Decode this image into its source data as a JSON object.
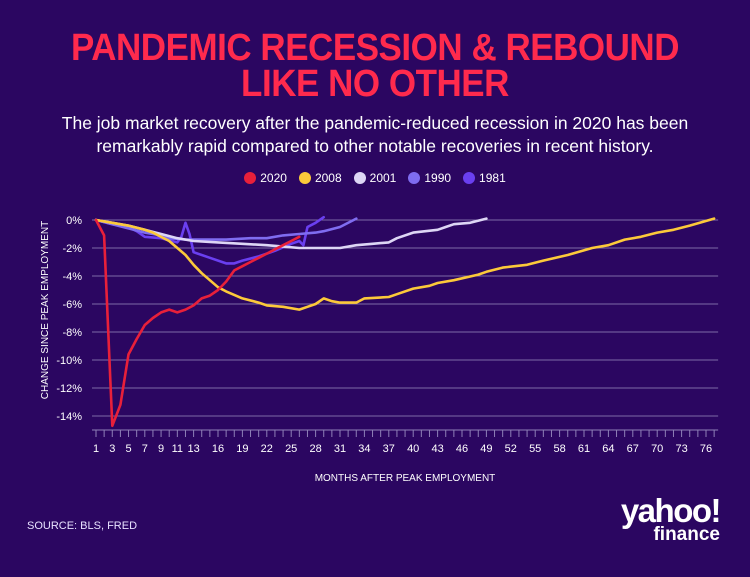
{
  "header": {
    "title_line1": "PANDEMIC RECESSION & REBOUND",
    "title_line2": "LIKE NO OTHER",
    "subtitle": "The job market recovery after the pandemic-reduced recession in 2020 has been remarkably rapid compared to other notable recoveries in recent history."
  },
  "footer": {
    "source": "SOURCE: BLS, FRED",
    "logo_main": "yahoo!",
    "logo_sub": "finance"
  },
  "chart_data": {
    "type": "line",
    "title": "PANDEMIC RECESSION & REBOUND LIKE NO OTHER",
    "xlabel": "MONTHS AFTER PEAK EMPLOYMENT",
    "ylabel": "CHANGE SINCE PEAK EMPLOYMENT",
    "xlim": [
      1,
      77
    ],
    "ylim": [
      -15,
      0.5
    ],
    "grid": true,
    "legend_position": "top-center",
    "x_ticks": [
      1,
      3,
      5,
      7,
      9,
      11,
      13,
      16,
      19,
      22,
      25,
      28,
      31,
      34,
      37,
      40,
      43,
      46,
      49,
      52,
      55,
      58,
      61,
      64,
      67,
      70,
      73,
      76
    ],
    "y_ticks": [
      0,
      -2,
      -4,
      -6,
      -8,
      -10,
      -12,
      -14
    ],
    "y_tick_labels": [
      "0%",
      "-2%",
      "-4%",
      "-6%",
      "-8%",
      "-10%",
      "-12%",
      "-14%"
    ],
    "series": [
      {
        "name": "2020",
        "color": "#e8203a",
        "points": [
          [
            1,
            0
          ],
          [
            2,
            -1.1
          ],
          [
            3,
            -14.7
          ],
          [
            4,
            -13.2
          ],
          [
            5,
            -9.6
          ],
          [
            6,
            -8.5
          ],
          [
            7,
            -7.5
          ],
          [
            8,
            -7
          ],
          [
            9,
            -6.6
          ],
          [
            10,
            -6.4
          ],
          [
            11,
            -6.6
          ],
          [
            12,
            -6.4
          ],
          [
            13,
            -6.1
          ],
          [
            14,
            -5.6
          ],
          [
            15,
            -5.4
          ],
          [
            16,
            -5.0
          ],
          [
            17,
            -4.4
          ],
          [
            18,
            -3.6
          ],
          [
            19,
            -3.3
          ],
          [
            20,
            -3.0
          ],
          [
            21,
            -2.7
          ],
          [
            22,
            -2.4
          ],
          [
            23,
            -2.1
          ],
          [
            24,
            -1.8
          ],
          [
            25,
            -1.5
          ],
          [
            26,
            -1.2
          ]
        ]
      },
      {
        "name": "2008",
        "color": "#fcc93a",
        "points": [
          [
            1,
            0
          ],
          [
            3,
            -0.2
          ],
          [
            5,
            -0.4
          ],
          [
            7,
            -0.7
          ],
          [
            8,
            -0.9
          ],
          [
            10,
            -1.5
          ],
          [
            12,
            -2.5
          ],
          [
            13,
            -3.2
          ],
          [
            14,
            -3.8
          ],
          [
            16,
            -4.8
          ],
          [
            17,
            -5.1
          ],
          [
            19,
            -5.6
          ],
          [
            21,
            -5.9
          ],
          [
            22,
            -6.1
          ],
          [
            24,
            -6.2
          ],
          [
            26,
            -6.4
          ],
          [
            27,
            -6.2
          ],
          [
            28,
            -6.0
          ],
          [
            29,
            -5.6
          ],
          [
            30,
            -5.8
          ],
          [
            31,
            -5.9
          ],
          [
            33,
            -5.9
          ],
          [
            34,
            -5.6
          ],
          [
            37,
            -5.5
          ],
          [
            38,
            -5.3
          ],
          [
            40,
            -4.9
          ],
          [
            42,
            -4.7
          ],
          [
            43,
            -4.5
          ],
          [
            45,
            -4.3
          ],
          [
            48,
            -3.9
          ],
          [
            49,
            -3.7
          ],
          [
            51,
            -3.4
          ],
          [
            54,
            -3.2
          ],
          [
            56,
            -2.9
          ],
          [
            59,
            -2.5
          ],
          [
            62,
            -2.0
          ],
          [
            64,
            -1.8
          ],
          [
            66,
            -1.4
          ],
          [
            68,
            -1.2
          ],
          [
            70,
            -0.9
          ],
          [
            72,
            -0.7
          ],
          [
            74,
            -0.4
          ],
          [
            77,
            0.1
          ]
        ]
      },
      {
        "name": "2001",
        "color": "#ddd6f5",
        "points": [
          [
            1,
            0
          ],
          [
            3,
            -0.2
          ],
          [
            5,
            -0.4
          ],
          [
            7,
            -0.7
          ],
          [
            9,
            -1.0
          ],
          [
            11,
            -1.3
          ],
          [
            13,
            -1.5
          ],
          [
            16,
            -1.6
          ],
          [
            19,
            -1.7
          ],
          [
            22,
            -1.8
          ],
          [
            24,
            -1.9
          ],
          [
            26,
            -2.0
          ],
          [
            29,
            -2.0
          ],
          [
            31,
            -2.0
          ],
          [
            33,
            -1.8
          ],
          [
            35,
            -1.7
          ],
          [
            37,
            -1.6
          ],
          [
            38,
            -1.3
          ],
          [
            40,
            -0.9
          ],
          [
            43,
            -0.7
          ],
          [
            44,
            -0.5
          ],
          [
            45,
            -0.3
          ],
          [
            47,
            -0.2
          ],
          [
            49,
            0.1
          ]
        ]
      },
      {
        "name": "1990",
        "color": "#7f6cf0",
        "points": [
          [
            1,
            0
          ],
          [
            3,
            -0.3
          ],
          [
            5,
            -0.6
          ],
          [
            7,
            -0.9
          ],
          [
            9,
            -1.1
          ],
          [
            10,
            -1.3
          ],
          [
            12,
            -1.4
          ],
          [
            14,
            -1.4
          ],
          [
            17,
            -1.4
          ],
          [
            20,
            -1.3
          ],
          [
            22,
            -1.3
          ],
          [
            24,
            -1.1
          ],
          [
            26,
            -1.0
          ],
          [
            28,
            -0.9
          ],
          [
            29,
            -0.8
          ],
          [
            31,
            -0.5
          ],
          [
            33,
            0.1
          ]
        ]
      },
      {
        "name": "1981",
        "color": "#6a3ff0",
        "points": [
          [
            1,
            0
          ],
          [
            3,
            -0.3
          ],
          [
            5,
            -0.5
          ],
          [
            6,
            -0.8
          ],
          [
            7,
            -1.2
          ],
          [
            9,
            -1.3
          ],
          [
            11,
            -1.6
          ],
          [
            11.5,
            -1.2
          ],
          [
            12,
            -0.2
          ],
          [
            12.5,
            -1.0
          ],
          [
            13,
            -2.3
          ],
          [
            15,
            -2.7
          ],
          [
            17,
            -3.1
          ],
          [
            18,
            -3.1
          ],
          [
            19,
            -2.9
          ],
          [
            21,
            -2.6
          ],
          [
            23,
            -2.2
          ],
          [
            25,
            -1.7
          ],
          [
            26,
            -1.5
          ],
          [
            26.5,
            -1.8
          ],
          [
            27,
            -0.5
          ],
          [
            28,
            -0.2
          ],
          [
            29,
            0.2
          ]
        ]
      }
    ]
  }
}
